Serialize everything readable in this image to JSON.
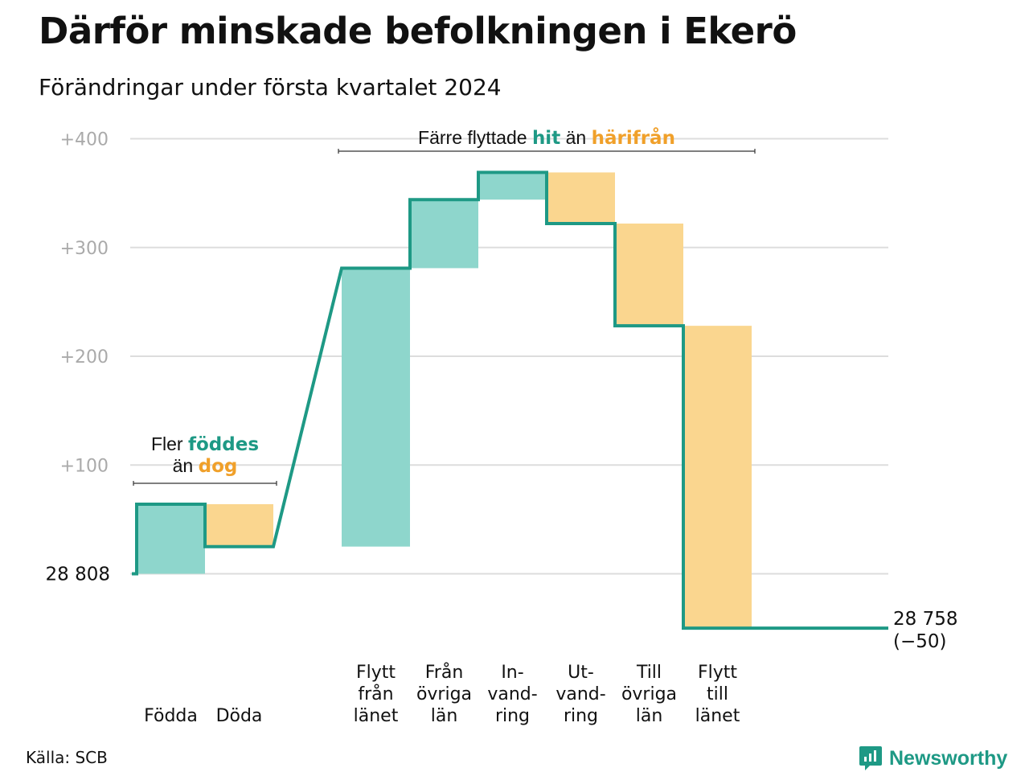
{
  "title": "Därför minskade befolkningen i Ekerö",
  "subtitle": "Förändringar under första kvartalet 2024",
  "source": "Källa: SCB",
  "brand": {
    "name": "Newsworthy",
    "icon": "bar-chart-icon"
  },
  "colors": {
    "increase": "#8ed6cc",
    "decrease": "#fad68f",
    "line": "#1e9985",
    "accent_orange": "#f0a02a",
    "grid": "#dddddd",
    "axis_text": "#aaaaaa"
  },
  "chart_data": {
    "type": "waterfall",
    "title": "Därför minskade befolkningen i Ekerö",
    "subtitle": "Förändringar under första kvartalet 2024",
    "start_value": 28808,
    "start_label": "28 808",
    "end_label": "28 758",
    "end_change_label": "(−50)",
    "ylim": [
      -50,
      400
    ],
    "yticks": [
      {
        "value": 100,
        "label": "+100"
      },
      {
        "value": 200,
        "label": "+200"
      },
      {
        "value": 300,
        "label": "+300"
      },
      {
        "value": 400,
        "label": "+400"
      }
    ],
    "grid": true,
    "categories": [
      {
        "slot": 0,
        "lines": [
          "Födda"
        ],
        "change": 64
      },
      {
        "slot": 1,
        "lines": [
          "Döda"
        ],
        "change": -39
      },
      {
        "slot": 3,
        "lines": [
          "Flytt",
          "från",
          "länet"
        ],
        "change": 256
      },
      {
        "slot": 4,
        "lines": [
          "Från",
          "övriga",
          "län"
        ],
        "change": 63
      },
      {
        "slot": 5,
        "lines": [
          "In-",
          "vand-",
          "ring"
        ],
        "change": 25
      },
      {
        "slot": 6,
        "lines": [
          "Ut-",
          "vand-",
          "ring"
        ],
        "change": -47
      },
      {
        "slot": 7,
        "lines": [
          "Till",
          "övriga",
          "län"
        ],
        "change": -94
      },
      {
        "slot": 8,
        "lines": [
          "Flytt",
          "till",
          "länet"
        ],
        "change": -278
      }
    ],
    "annotations": [
      {
        "id": "births-deaths",
        "line1": [
          "Fler ",
          "föddes"
        ],
        "line2": [
          "än ",
          "dog"
        ],
        "slots": [
          0,
          1
        ]
      },
      {
        "id": "moves",
        "line1": [
          "Färre flyttade ",
          "hit",
          " än ",
          "härifrån"
        ],
        "slots": [
          3,
          8
        ]
      }
    ]
  }
}
